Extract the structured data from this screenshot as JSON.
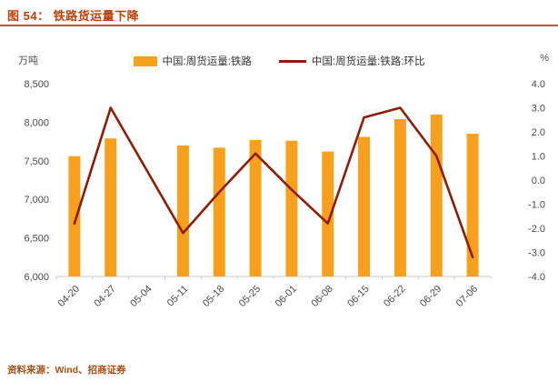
{
  "header": {
    "title": "图 54： 铁路货运量下降"
  },
  "footer": {
    "source": "资料来源：Wind、招商证券"
  },
  "colors": {
    "title": "#BE4006",
    "divider": "#C2570E",
    "bar": "#F7A01E",
    "line": "#8F1D05",
    "axis_text": "#4a4a4a",
    "source_text": "#A84E16"
  },
  "chart_data": {
    "type": "bar",
    "title": "铁路货运量下降",
    "categories": [
      "04-20",
      "04-27",
      "05-04",
      "05-11",
      "05-18",
      "05-25",
      "06-01",
      "06-08",
      "06-15",
      "06-22",
      "06-29",
      "07-06"
    ],
    "series": [
      {
        "name": "中国:周货运量:铁路",
        "type": "bar",
        "axis": "left",
        "unit": "万吨",
        "color": "#F7A01E",
        "values": [
          7560,
          7790,
          null,
          7700,
          7670,
          7770,
          7760,
          7620,
          7810,
          8040,
          8100,
          7850
        ]
      },
      {
        "name": "中国:周货运量:铁路:环比",
        "type": "line",
        "axis": "right",
        "unit": "%",
        "color": "#8F1D05",
        "values": [
          -1.8,
          3.0,
          null,
          -2.2,
          -0.5,
          1.1,
          -0.4,
          -1.8,
          2.6,
          3.0,
          1.0,
          -3.2
        ]
      }
    ],
    "left_axis": {
      "label": "万吨",
      "min": 6000,
      "max": 8500,
      "step": 500
    },
    "right_axis": {
      "label": "%",
      "min": -4.0,
      "max": 4.0,
      "step": 1.0,
      "decimals": 1
    },
    "legend_position": "top",
    "grid": false
  }
}
